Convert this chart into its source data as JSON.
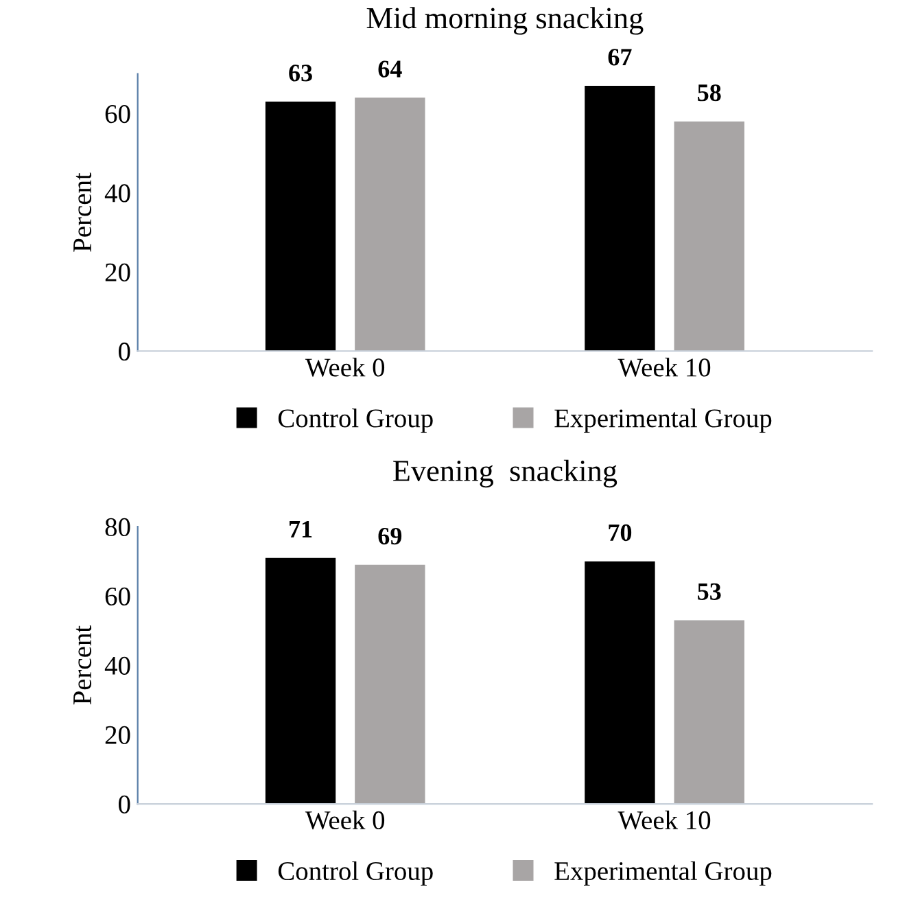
{
  "chart_data": [
    {
      "type": "bar",
      "title": "Mid morning snacking",
      "ylabel": "Percent",
      "categories": [
        "Week 0",
        "Week 10"
      ],
      "series": [
        {
          "name": "Control Group",
          "color": "#000000",
          "values": [
            63,
            67
          ]
        },
        {
          "name": "Experimental Group",
          "color": "#a8a5a5",
          "values": [
            64,
            58
          ]
        }
      ],
      "ylim": [
        0,
        70
      ],
      "yticks": [
        0,
        20,
        40,
        60
      ],
      "data_labels": true,
      "legend": "bottom",
      "grid": false
    },
    {
      "type": "bar",
      "title": "Evening  snacking",
      "ylabel": "Percent",
      "categories": [
        "Week 0",
        "Week 10"
      ],
      "series": [
        {
          "name": "Control Group",
          "color": "#000000",
          "values": [
            71,
            70
          ]
        },
        {
          "name": "Experimental Group",
          "color": "#a8a5a5",
          "values": [
            69,
            53
          ]
        }
      ],
      "ylim": [
        0,
        80
      ],
      "yticks": [
        0,
        20,
        40,
        60,
        80
      ],
      "data_labels": true,
      "legend": "bottom",
      "grid": false
    }
  ]
}
